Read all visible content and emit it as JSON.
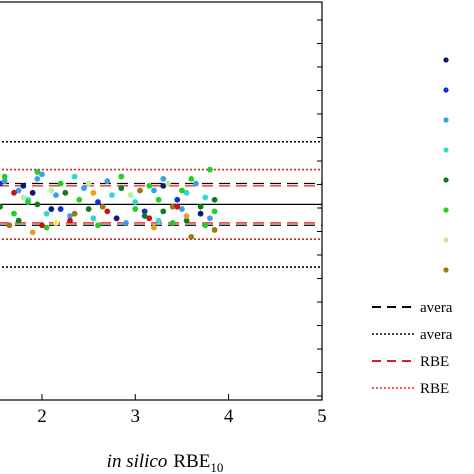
{
  "chart_data": {
    "type": "scatter",
    "xlabel": {
      "italic": "in silico",
      "main": "RBE",
      "sub": "10"
    },
    "xlim": [
      0.5,
      5
    ],
    "ylim": [
      0,
      8
    ],
    "x_ticks": [
      "2",
      "3",
      "4",
      "5"
    ],
    "x_tick_values": [
      2,
      3,
      4,
      5
    ],
    "grid": false,
    "reference_lines": [
      {
        "name": "avera",
        "y": 4.0,
        "style": "solid",
        "color": "#000000"
      },
      {
        "name": "avera",
        "y": 4.45,
        "style": "dashed",
        "color": "#000000"
      },
      {
        "name": "avera",
        "y": 3.55,
        "style": "dashed",
        "color": "#000000"
      },
      {
        "name": "avera",
        "y": 5.35,
        "style": "dotted",
        "color": "#000000"
      },
      {
        "name": "avera",
        "y": 2.65,
        "style": "dotted",
        "color": "#000000"
      },
      {
        "name": "RBE",
        "y": 4.4,
        "style": "dashed",
        "color": "#e02020"
      },
      {
        "name": "RBE",
        "y": 3.6,
        "style": "dashed",
        "color": "#e02020"
      },
      {
        "name": "RBE",
        "y": 4.75,
        "style": "dotted",
        "color": "#e02020"
      },
      {
        "name": "RBE",
        "y": 3.25,
        "style": "dotted",
        "color": "#e02020"
      }
    ],
    "series": [
      {
        "color": "#0a1a6e",
        "points": [
          [
            1.4,
            4.5
          ],
          [
            1.9,
            4.25
          ],
          [
            1.8,
            4.4
          ],
          [
            2.8,
            3.7
          ],
          [
            3.3,
            4.4
          ],
          [
            3.7,
            3.8
          ],
          [
            2.1,
            3.9
          ]
        ]
      },
      {
        "color": "#1030d0",
        "points": [
          [
            1.45,
            4.4
          ],
          [
            1.55,
            4.45
          ],
          [
            2.2,
            3.9
          ],
          [
            2.6,
            4.05
          ],
          [
            3.1,
            3.85
          ],
          [
            3.45,
            4.1
          ]
        ]
      },
      {
        "color": "#3aa0e8",
        "points": [
          [
            1.6,
            4.5
          ],
          [
            1.75,
            4.3
          ],
          [
            1.95,
            4.55
          ],
          [
            2.0,
            4.65
          ],
          [
            2.15,
            4.2
          ],
          [
            2.3,
            3.75
          ],
          [
            2.45,
            4.35
          ],
          [
            2.7,
            4.5
          ],
          [
            2.9,
            3.6
          ],
          [
            3.2,
            4.3
          ],
          [
            3.3,
            4.55
          ],
          [
            3.5,
            3.9
          ],
          [
            3.65,
            4.45
          ],
          [
            3.8,
            3.7
          ]
        ]
      },
      {
        "color": "#30d8d0",
        "points": [
          [
            1.5,
            4.35
          ],
          [
            1.85,
            4.1
          ],
          [
            2.05,
            3.8
          ],
          [
            2.35,
            4.6
          ],
          [
            2.55,
            3.7
          ],
          [
            2.75,
            4.2
          ],
          [
            3.0,
            4.05
          ],
          [
            3.25,
            3.65
          ],
          [
            3.55,
            4.25
          ],
          [
            3.75,
            4.15
          ]
        ]
      },
      {
        "color": "#127a20",
        "points": [
          [
            1.55,
            3.95
          ],
          [
            1.75,
            3.65
          ],
          [
            1.95,
            4.0
          ],
          [
            2.25,
            4.25
          ],
          [
            2.5,
            3.9
          ],
          [
            2.85,
            4.35
          ],
          [
            3.1,
            3.75
          ],
          [
            3.3,
            3.85
          ],
          [
            3.55,
            3.65
          ],
          [
            3.7,
            3.95
          ],
          [
            3.85,
            4.1
          ]
        ]
      },
      {
        "color": "#22d022",
        "points": [
          [
            1.4,
            4.05
          ],
          [
            1.45,
            3.75
          ],
          [
            1.6,
            4.6
          ],
          [
            1.7,
            3.8
          ],
          [
            1.85,
            4.05
          ],
          [
            1.95,
            4.7
          ],
          [
            2.05,
            3.5
          ],
          [
            2.2,
            4.45
          ],
          [
            2.4,
            4.1
          ],
          [
            2.6,
            3.55
          ],
          [
            2.85,
            4.6
          ],
          [
            3.0,
            3.9
          ],
          [
            3.15,
            4.4
          ],
          [
            3.25,
            4.1
          ],
          [
            3.4,
            3.6
          ],
          [
            3.5,
            4.3
          ],
          [
            3.6,
            4.55
          ],
          [
            3.75,
            3.55
          ],
          [
            3.85,
            3.85
          ],
          [
            3.8,
            4.75
          ]
        ]
      },
      {
        "color": "#b8f0a0",
        "points": [
          [
            1.5,
            3.6
          ],
          [
            1.8,
            4.15
          ],
          [
            2.1,
            4.3
          ],
          [
            2.5,
            4.45
          ],
          [
            2.95,
            4.2
          ],
          [
            3.35,
            4.45
          ]
        ]
      },
      {
        "color": "#9a7a10",
        "points": [
          [
            1.65,
            3.55
          ],
          [
            2.35,
            3.8
          ],
          [
            2.65,
            3.95
          ],
          [
            3.05,
            4.3
          ],
          [
            3.4,
            3.95
          ],
          [
            3.6,
            3.3
          ],
          [
            3.85,
            3.45
          ]
        ]
      },
      {
        "color": "#c01818",
        "points": [
          [
            1.7,
            4.25
          ],
          [
            2.0,
            3.55
          ],
          [
            2.3,
            3.65
          ],
          [
            2.7,
            3.85
          ],
          [
            3.15,
            3.7
          ],
          [
            3.45,
            3.95
          ]
        ]
      },
      {
        "color": "#e8a020",
        "points": [
          [
            1.5,
            4.15
          ],
          [
            1.9,
            3.4
          ],
          [
            2.55,
            4.25
          ],
          [
            3.2,
            3.5
          ],
          [
            3.55,
            3.75
          ]
        ]
      },
      {
        "color": "#f0f050",
        "points": [
          [
            1.45,
            3.3
          ],
          [
            2.15,
            3.6
          ]
        ]
      }
    ],
    "legend_marker_colors": [
      "#0a1a6e",
      "#1030d0",
      "#3aa0e8",
      "#30d8d0",
      "#127a20",
      "#22d022",
      "#b8f0a0",
      "#9a7a10"
    ],
    "legend_lines": [
      {
        "label": "avera",
        "style": "dashed",
        "color": "#000000"
      },
      {
        "label": "avera",
        "style": "dotted",
        "color": "#000000"
      },
      {
        "label": "RBE",
        "style": "dashed",
        "color": "#e02020"
      },
      {
        "label": "RBE",
        "style": "dotted",
        "color": "#e02020"
      }
    ]
  }
}
